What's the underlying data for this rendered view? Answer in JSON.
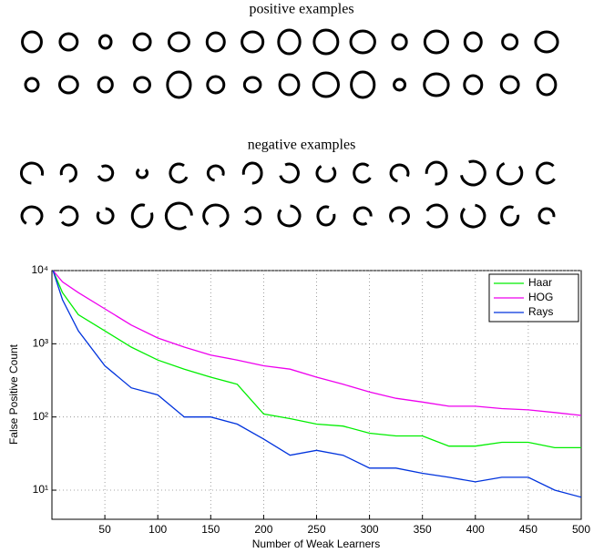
{
  "figure": {
    "positive_label": "positive examples",
    "negative_label": "negative examples"
  },
  "chart_data": {
    "type": "line",
    "xlabel": "Number of Weak Learners",
    "ylabel": "False Positive Count",
    "x": [
      1,
      10,
      25,
      50,
      75,
      100,
      125,
      150,
      175,
      200,
      225,
      250,
      275,
      300,
      325,
      350,
      375,
      400,
      425,
      450,
      475,
      500
    ],
    "series": [
      {
        "name": "Haar",
        "color": "#00ee00",
        "values": [
          10000,
          5000,
          2500,
          1500,
          900,
          600,
          450,
          350,
          280,
          110,
          95,
          80,
          75,
          60,
          55,
          55,
          40,
          40,
          45,
          45,
          38,
          38
        ]
      },
      {
        "name": "HOG",
        "color": "#ee00ee",
        "values": [
          10000,
          7000,
          5000,
          3000,
          1800,
          1200,
          900,
          700,
          600,
          500,
          450,
          350,
          280,
          220,
          180,
          160,
          140,
          140,
          130,
          125,
          115,
          105
        ]
      },
      {
        "name": "Rays",
        "color": "#0033dd",
        "values": [
          10000,
          4000,
          1500,
          500,
          250,
          200,
          100,
          100,
          80,
          50,
          30,
          35,
          30,
          20,
          20,
          17,
          15,
          13,
          15,
          15,
          10,
          8
        ]
      }
    ],
    "xlim": [
      0,
      500
    ],
    "xticks": [
      50,
      100,
      150,
      200,
      250,
      300,
      350,
      400,
      450,
      500
    ],
    "ylim": [
      4,
      10000
    ],
    "log_y": true,
    "yticks": [
      {
        "value": 10,
        "label": "10¹"
      },
      {
        "value": 100,
        "label": "10²"
      },
      {
        "value": 1000,
        "label": "10³"
      },
      {
        "value": 10000,
        "label": "10⁴"
      }
    ],
    "grid": true,
    "legend": "upper right"
  }
}
